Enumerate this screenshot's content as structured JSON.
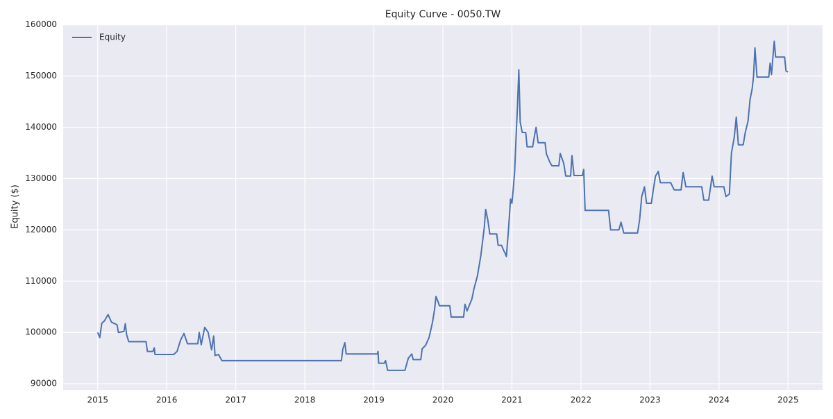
{
  "chart_data": {
    "type": "line",
    "title": "Equity Curve - 0050.TW",
    "y_label": "Equity ($)",
    "grid": true,
    "legend": "upper left",
    "xlim": [
      2014.5,
      2025.5
    ],
    "xticks": [
      2015,
      2016,
      2017,
      2018,
      2019,
      2020,
      2021,
      2022,
      2023,
      2024,
      2025
    ],
    "ylim": [
      88800,
      160100
    ],
    "yticks": [
      90000,
      100000,
      110000,
      120000,
      130000,
      140000,
      150000,
      160000
    ],
    "x": [
      2015.0,
      2015.03,
      2015.06,
      2015.1,
      2015.15,
      2015.2,
      2015.28,
      2015.3,
      2015.38,
      2015.4,
      2015.42,
      2015.45,
      2015.7,
      2015.72,
      2015.8,
      2015.82,
      2015.83,
      2016.1,
      2016.15,
      2016.2,
      2016.25,
      2016.3,
      2016.45,
      2016.47,
      2016.5,
      2016.55,
      2016.6,
      2016.65,
      2016.68,
      2016.7,
      2016.75,
      2016.8,
      2018.53,
      2018.55,
      2018.58,
      2018.6,
      2019.05,
      2019.06,
      2019.07,
      2019.15,
      2019.17,
      2019.2,
      2019.45,
      2019.5,
      2019.55,
      2019.57,
      2019.68,
      2019.7,
      2019.75,
      2019.8,
      2019.85,
      2019.88,
      2019.9,
      2019.93,
      2019.95,
      2020.1,
      2020.12,
      2020.3,
      2020.32,
      2020.35,
      2020.42,
      2020.45,
      2020.5,
      2020.55,
      2020.6,
      2020.62,
      2020.65,
      2020.68,
      2020.78,
      2020.8,
      2020.85,
      2020.88,
      2020.9,
      2020.92,
      2020.95,
      2020.98,
      2021.0,
      2021.02,
      2021.04,
      2021.06,
      2021.08,
      2021.1,
      2021.12,
      2021.15,
      2021.2,
      2021.22,
      2021.3,
      2021.32,
      2021.35,
      2021.38,
      2021.48,
      2021.5,
      2021.55,
      2021.58,
      2021.68,
      2021.7,
      2021.75,
      2021.78,
      2021.85,
      2021.87,
      2021.9,
      2022.02,
      2022.04,
      2022.06,
      2022.4,
      2022.43,
      2022.55,
      2022.58,
      2022.62,
      2022.82,
      2022.85,
      2022.88,
      2022.92,
      2022.95,
      2023.02,
      2023.05,
      2023.08,
      2023.12,
      2023.15,
      2023.3,
      2023.35,
      2023.45,
      2023.48,
      2023.52,
      2023.75,
      2023.78,
      2023.85,
      2023.88,
      2023.9,
      2023.93,
      2024.07,
      2024.1,
      2024.15,
      2024.18,
      2024.22,
      2024.25,
      2024.28,
      2024.35,
      2024.38,
      2024.42,
      2024.45,
      2024.48,
      2024.5,
      2024.52,
      2024.55,
      2024.72,
      2024.74,
      2024.76,
      2024.78,
      2024.8,
      2024.82,
      2024.95,
      2024.97,
      2025.0
    ],
    "series": [
      {
        "name": "Equity",
        "color": "#4c72b0",
        "values": [
          100000,
          99000,
          101800,
          102300,
          103500,
          102000,
          101500,
          100000,
          100200,
          101700,
          99500,
          98200,
          98200,
          96300,
          96300,
          97000,
          95700,
          95700,
          96300,
          98500,
          99800,
          97800,
          97800,
          100000,
          97600,
          101000,
          100000,
          96600,
          99300,
          95500,
          95700,
          94500,
          94500,
          96700,
          98000,
          95800,
          95800,
          96300,
          94000,
          94000,
          94500,
          92600,
          92600,
          95000,
          95800,
          94700,
          94700,
          96800,
          97500,
          99000,
          102000,
          104500,
          107000,
          106000,
          105200,
          105200,
          103000,
          103000,
          105500,
          104200,
          106500,
          108500,
          111000,
          115000,
          120500,
          124000,
          122000,
          119200,
          119200,
          117000,
          117000,
          116000,
          115500,
          114800,
          120000,
          126000,
          125200,
          128000,
          131500,
          138000,
          144000,
          151200,
          141000,
          139000,
          139000,
          136200,
          136200,
          137800,
          140000,
          137000,
          137000,
          134800,
          133200,
          132500,
          132500,
          134900,
          133000,
          130500,
          130500,
          134500,
          130600,
          130600,
          131800,
          123800,
          123800,
          120000,
          120000,
          121500,
          119400,
          119400,
          122000,
          126500,
          128400,
          125200,
          125200,
          128000,
          130500,
          131400,
          129200,
          129200,
          127800,
          127800,
          131200,
          128400,
          128400,
          125800,
          125800,
          128600,
          130500,
          128400,
          128400,
          126500,
          127000,
          135000,
          138000,
          142000,
          136600,
          136600,
          139000,
          141200,
          145500,
          147500,
          150000,
          155500,
          149800,
          149800,
          152500,
          150300,
          153700,
          156800,
          153700,
          153700,
          151000,
          150800
        ]
      }
    ]
  }
}
